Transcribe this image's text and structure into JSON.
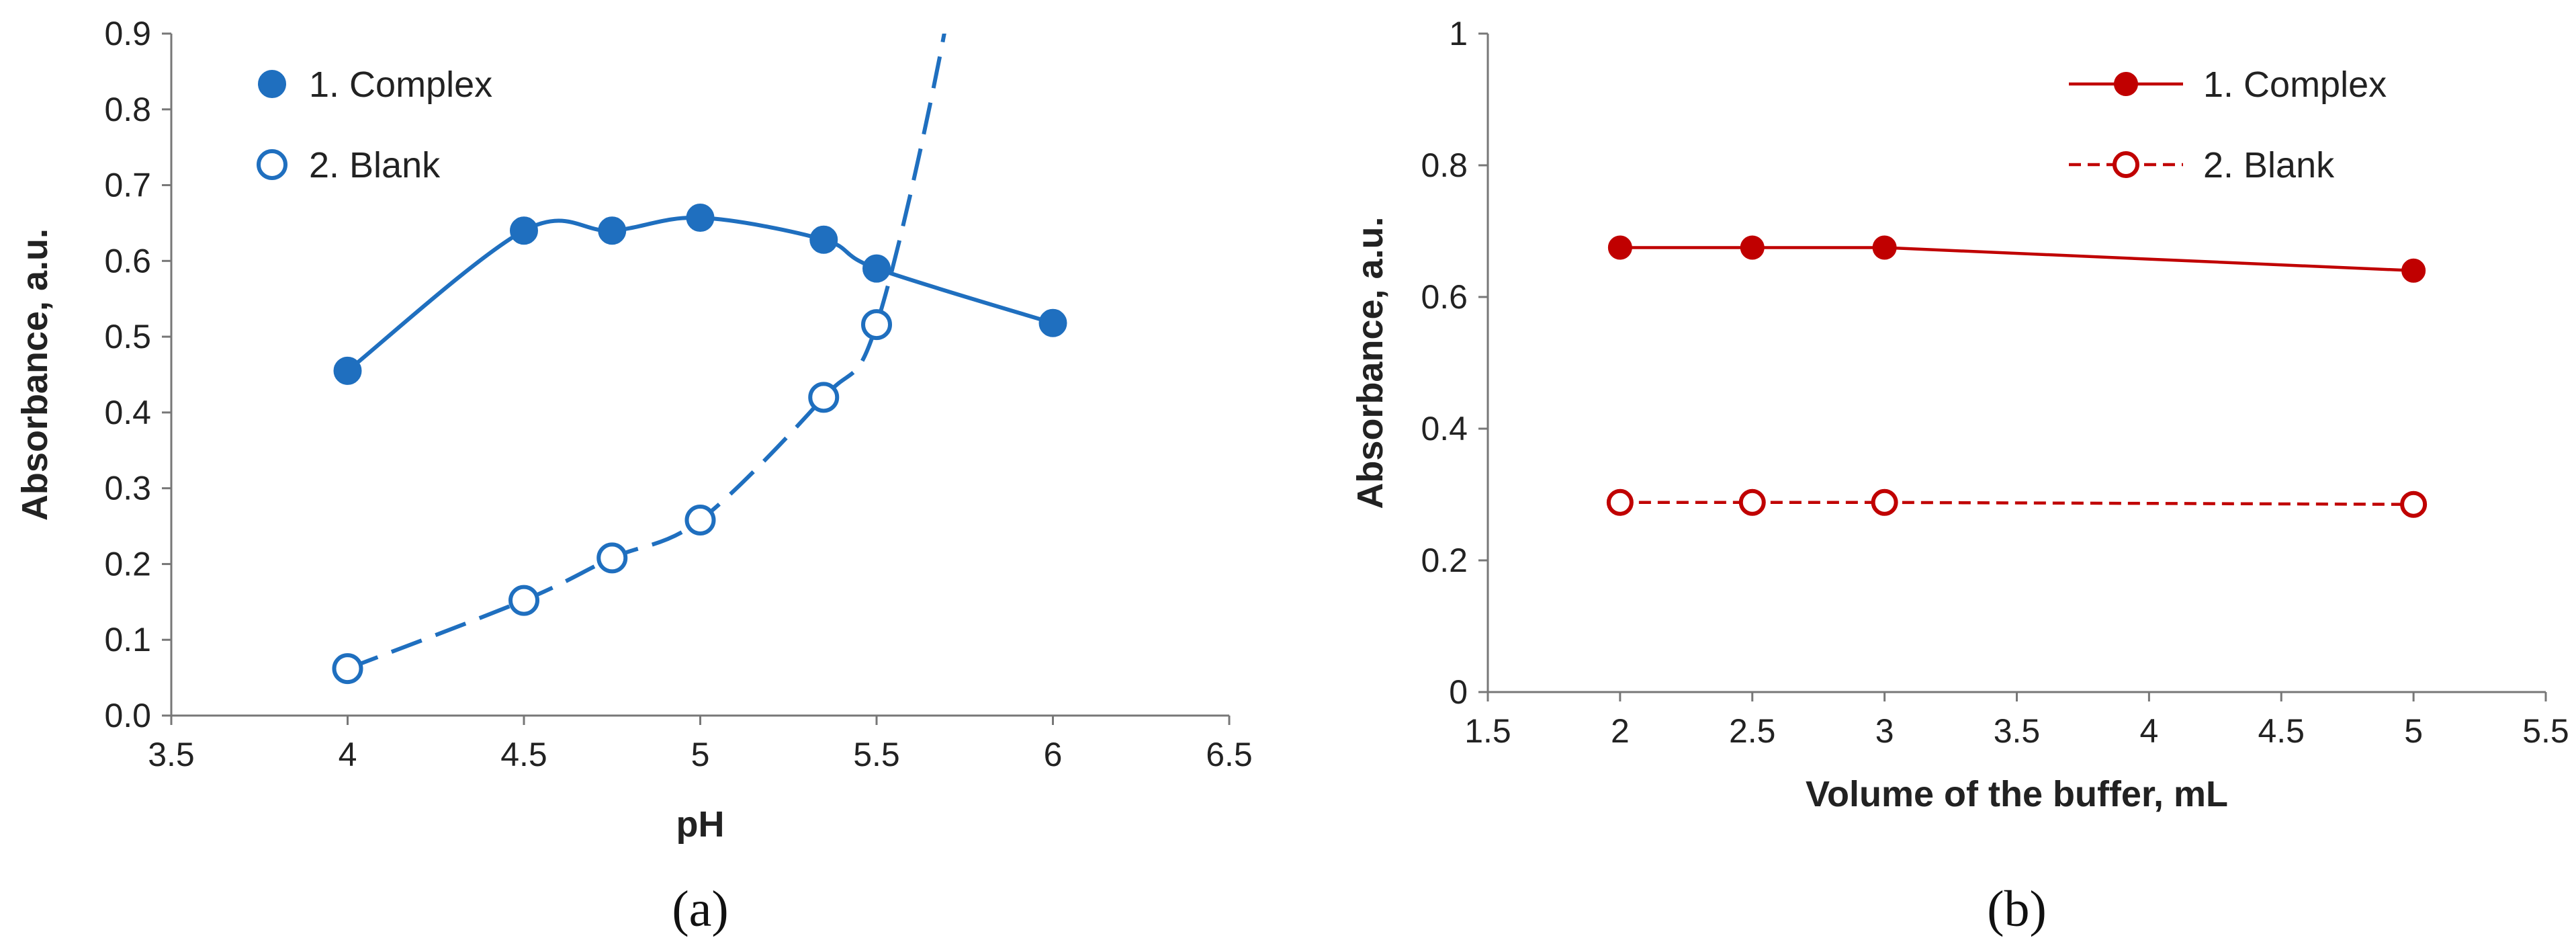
{
  "colors": {
    "panel_a": "#1f6fbf",
    "panel_b": "#c00000",
    "axis": "#777777",
    "text": "#222222"
  },
  "chart_data": [
    {
      "type": "scatter",
      "panel_label": "(a)",
      "xlabel": "pH",
      "ylabel": "Absorbance, a.u.",
      "xlim": [
        3.5,
        6.5
      ],
      "ylim": [
        0.0,
        0.9
      ],
      "x_ticks": [
        "3.5",
        "4",
        "4.5",
        "5",
        "5.5",
        "6",
        "6.5"
      ],
      "y_ticks": [
        "0.0",
        "0.1",
        "0.2",
        "0.3",
        "0.4",
        "0.5",
        "0.6",
        "0.7",
        "0.8",
        "0.9"
      ],
      "grid": false,
      "legend_position": "top-left",
      "series": [
        {
          "name": "1. Complex",
          "marker": "filled-circle",
          "line": "solid smooth",
          "x": [
            4.0,
            4.5,
            4.75,
            5.0,
            5.35,
            5.5,
            6.0
          ],
          "y": [
            0.455,
            0.64,
            0.64,
            0.657,
            0.628,
            0.59,
            0.518
          ]
        },
        {
          "name": "2. Blank",
          "marker": "open-circle",
          "line": "dashed smooth",
          "x": [
            4.0,
            4.5,
            4.75,
            5.0,
            5.35,
            5.5
          ],
          "y": [
            0.062,
            0.152,
            0.208,
            0.258,
            0.42,
            0.516
          ],
          "extends_to_top": true
        }
      ]
    },
    {
      "type": "line",
      "panel_label": "(b)",
      "xlabel": "Volume of the buffer, mL",
      "ylabel": "Absorbance, a.u.",
      "xlim": [
        1.5,
        5.5
      ],
      "ylim": [
        0,
        1
      ],
      "x_ticks": [
        "1.5",
        "2",
        "2.5",
        "3",
        "3.5",
        "4",
        "4.5",
        "5",
        "5.5"
      ],
      "y_ticks": [
        "0",
        "0.2",
        "0.4",
        "0.6",
        "0.8",
        "1"
      ],
      "grid": false,
      "legend_position": "top-right",
      "series": [
        {
          "name": "1. Complex",
          "marker": "filled-circle",
          "line": "solid",
          "x": [
            2,
            2.5,
            3,
            5
          ],
          "y": [
            0.675,
            0.675,
            0.675,
            0.64
          ]
        },
        {
          "name": "2. Blank",
          "marker": "open-circle",
          "line": "dashed",
          "x": [
            2,
            2.5,
            3,
            5
          ],
          "y": [
            0.288,
            0.288,
            0.288,
            0.285
          ]
        }
      ]
    }
  ]
}
